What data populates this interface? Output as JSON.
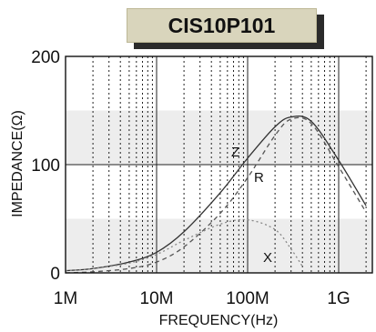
{
  "chart_data": {
    "type": "line",
    "title": "CIS10P101",
    "xlabel": "FREQUENCY(Hz)",
    "ylabel": "IMPEDANCE(Ω)",
    "x_scale": "log",
    "xlim": [
      "1M",
      "5G"
    ],
    "ylim": [
      0,
      200
    ],
    "x_ticks": [
      "1M",
      "10M",
      "100M",
      "1G"
    ],
    "y_ticks": [
      "0",
      "100",
      "200"
    ],
    "grid": true,
    "colors": {
      "Z": "#333333",
      "R": "#555555",
      "X": "#888888",
      "band": "#ededed"
    },
    "series": [
      {
        "name": "Z",
        "style": "solid",
        "x": [
          "1M",
          "2M",
          "5M",
          "10M",
          "20M",
          "50M",
          "100M",
          "200M",
          "300M",
          "500M",
          "1G",
          "2G",
          "5G"
        ],
        "y": [
          2,
          4,
          10,
          19,
          38,
          74,
          106,
          135,
          144,
          140,
          104,
          62,
          34
        ]
      },
      {
        "name": "R",
        "style": "dashed",
        "x": [
          "1M",
          "2M",
          "5M",
          "10M",
          "20M",
          "50M",
          "100M",
          "200M",
          "300M",
          "500M",
          "1G",
          "2G",
          "5G"
        ],
        "y": [
          0,
          1,
          4,
          10,
          24,
          55,
          88,
          127,
          142,
          138,
          98,
          56,
          28
        ]
      },
      {
        "name": "X",
        "style": "dotted",
        "x": [
          "1M",
          "2M",
          "5M",
          "10M",
          "20M",
          "50M",
          "100M",
          "200M",
          "300M",
          "400M"
        ],
        "y": [
          2,
          4,
          9,
          17,
          30,
          45,
          49,
          40,
          22,
          6
        ]
      }
    ]
  }
}
